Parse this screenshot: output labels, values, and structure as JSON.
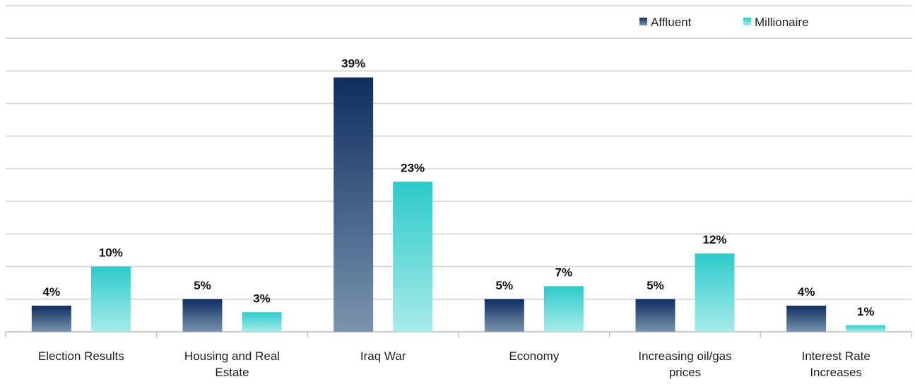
{
  "chart_data": {
    "type": "bar",
    "categories": [
      "Election Results",
      "Housing and Real Estate",
      "Iraq War",
      "Economy",
      "Increasing oil/gas prices",
      "Interest Rate Increases"
    ],
    "category_lines": [
      [
        "Election Results"
      ],
      [
        "Housing and Real",
        "Estate"
      ],
      [
        "Iraq War"
      ],
      [
        "Economy"
      ],
      [
        "Increasing oil/gas",
        "prices"
      ],
      [
        "Interest Rate",
        "Increases"
      ]
    ],
    "series": [
      {
        "name": "Affluent",
        "values": [
          4,
          5,
          39,
          5,
          5,
          4
        ],
        "value_labels": [
          "4%",
          "5%",
          "39%",
          "5%",
          "5%",
          "4%"
        ],
        "color_top": "#0f2e60",
        "color_bottom": "#7a93ae"
      },
      {
        "name": "Millionaire",
        "values": [
          10,
          3,
          23,
          7,
          12,
          1
        ],
        "value_labels": [
          "10%",
          "3%",
          "23%",
          "7%",
          "12%",
          "1%"
        ],
        "color_top": "#2ccaca",
        "color_bottom": "#a8ebea"
      }
    ],
    "title": "",
    "xlabel": "",
    "ylabel": "",
    "ylim": [
      0,
      50
    ],
    "grid": true,
    "legend_position": "top-right"
  }
}
